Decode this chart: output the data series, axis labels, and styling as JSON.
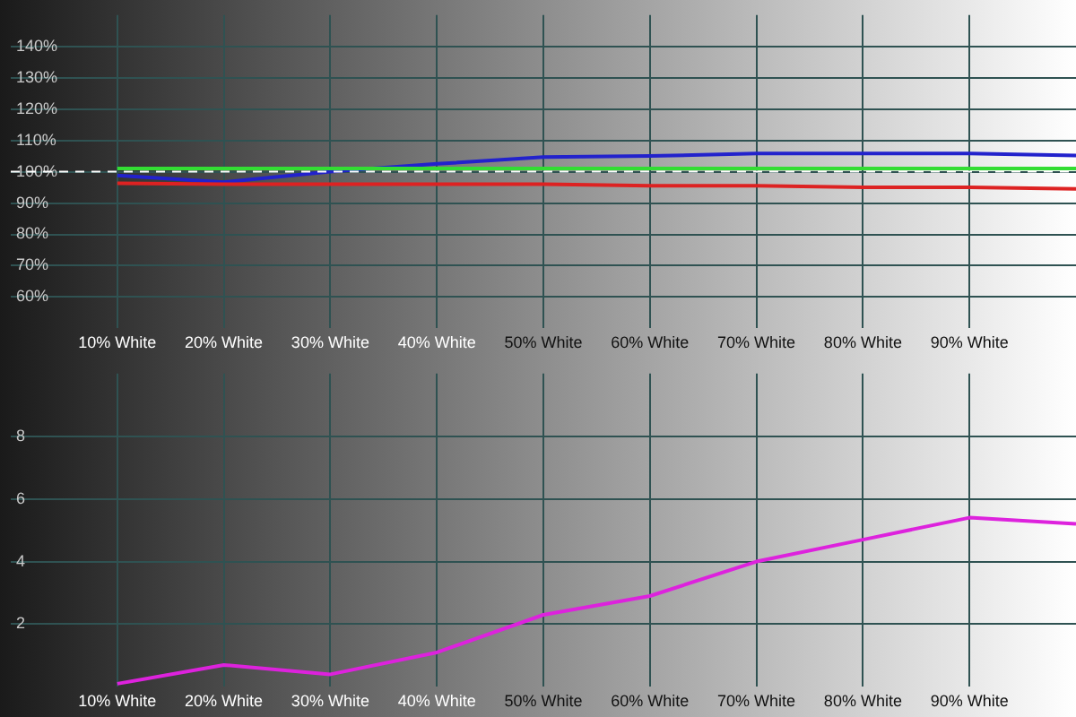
{
  "chart_data": [
    {
      "type": "line",
      "x": [
        10,
        20,
        30,
        40,
        50,
        60,
        70,
        80,
        90,
        100
      ],
      "xlim": [
        0,
        100
      ],
      "xticks": [
        {
          "value": 10,
          "label": "10% White"
        },
        {
          "value": 20,
          "label": "20% White"
        },
        {
          "value": 30,
          "label": "30% White"
        },
        {
          "value": 40,
          "label": "40% White"
        },
        {
          "value": 50,
          "label": "50% White"
        },
        {
          "value": 60,
          "label": "60% White"
        },
        {
          "value": 70,
          "label": "70% White"
        },
        {
          "value": 80,
          "label": "80% White"
        },
        {
          "value": 90,
          "label": "90% White"
        }
      ],
      "ylim": [
        50,
        150
      ],
      "yticks": [
        {
          "value": 60,
          "label": "60%"
        },
        {
          "value": 70,
          "label": "70%"
        },
        {
          "value": 80,
          "label": "80%"
        },
        {
          "value": 90,
          "label": "90%"
        },
        {
          "value": 100,
          "label": "100%"
        },
        {
          "value": 110,
          "label": "110%"
        },
        {
          "value": 120,
          "label": "120%"
        },
        {
          "value": 130,
          "label": "130%"
        },
        {
          "value": 140,
          "label": "140%"
        }
      ],
      "grid": true,
      "marker": "none",
      "line_style": "solid",
      "ref_lines": [
        {
          "axis": "y",
          "value": 100,
          "color": "#ffffff",
          "line_style": "dashed"
        }
      ],
      "series": [
        {
          "color": "#33dd33",
          "values": [
            101,
            101,
            101,
            101,
            101,
            101,
            101,
            101,
            101,
            101
          ]
        },
        {
          "color": "#dd2222",
          "values": [
            96.3,
            96,
            96,
            96,
            96,
            95.5,
            95.5,
            95,
            95,
            94.5
          ]
        },
        {
          "color": "#2222cc",
          "values": [
            98.8,
            96.7,
            100,
            102.5,
            104.7,
            105,
            105.8,
            105.8,
            105.8,
            105.2
          ]
        }
      ]
    },
    {
      "type": "line",
      "x": [
        10,
        20,
        30,
        40,
        50,
        60,
        70,
        80,
        90,
        100
      ],
      "xlim": [
        0,
        100
      ],
      "xticks": [
        {
          "value": 10,
          "label": "10% White"
        },
        {
          "value": 20,
          "label": "20% White"
        },
        {
          "value": 30,
          "label": "30% White"
        },
        {
          "value": 40,
          "label": "40% White"
        },
        {
          "value": 50,
          "label": "50% White"
        },
        {
          "value": 60,
          "label": "60% White"
        },
        {
          "value": 70,
          "label": "70% White"
        },
        {
          "value": 80,
          "label": "80% White"
        },
        {
          "value": 90,
          "label": "90% White"
        }
      ],
      "ylim": [
        0,
        10
      ],
      "yticks": [
        2,
        4,
        6,
        8
      ],
      "grid": true,
      "marker": "none",
      "line_style": "solid",
      "series": [
        {
          "color": "#dd22dd",
          "values": [
            0.1,
            0.7,
            0.4,
            1.1,
            2.3,
            2.9,
            4,
            4.7,
            5.4,
            5.2
          ]
        }
      ]
    }
  ]
}
